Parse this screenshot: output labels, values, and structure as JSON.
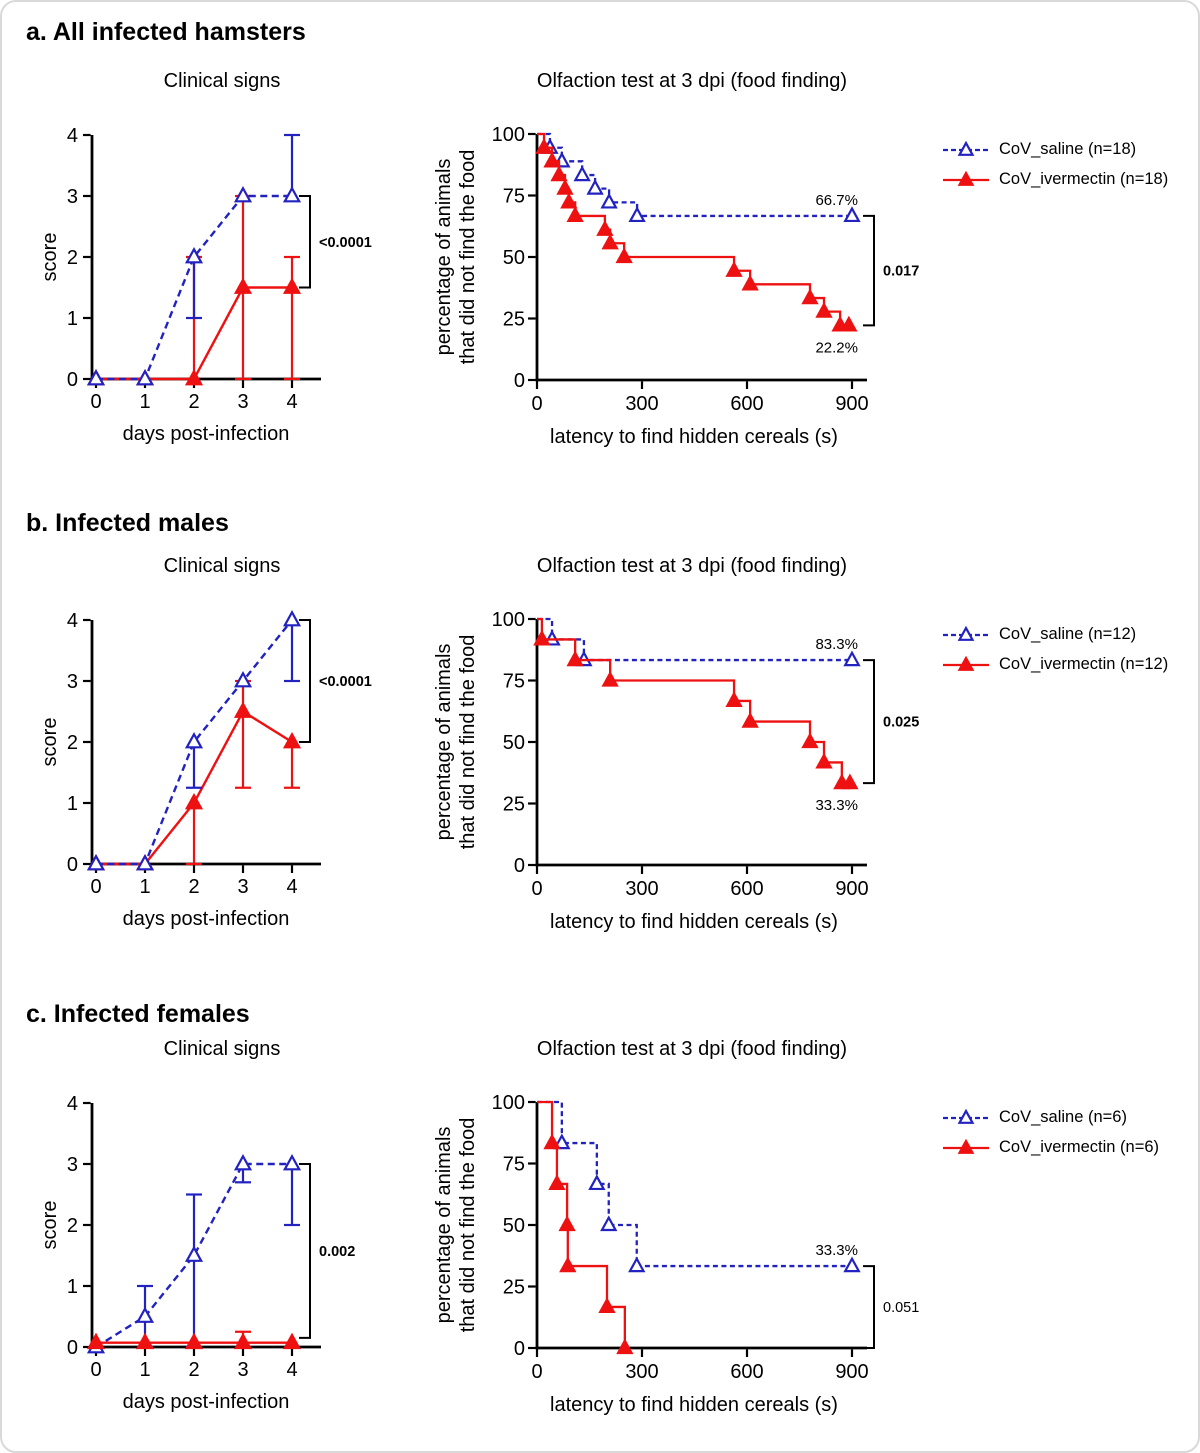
{
  "colors": {
    "saline": "#2222c0",
    "ivermectin": "#ee1111",
    "axis": "#000000",
    "muted": "#6e6e6e"
  },
  "panels": [
    {
      "id": "a",
      "title": "a. All infected hamsters",
      "legend": [
        {
          "label": "CoV_saline (n=18)",
          "series": "saline"
        },
        {
          "label": "CoV_ivermectin (n=18)",
          "series": "ivermectin"
        }
      ]
    },
    {
      "id": "b",
      "title": "b. Infected males",
      "legend": [
        {
          "label": "CoV_saline (n=12)",
          "series": "saline"
        },
        {
          "label": "CoV_ivermectin (n=12)",
          "series": "ivermectin"
        }
      ]
    },
    {
      "id": "c",
      "title": "c. Infected females",
      "legend": [
        {
          "label": "CoV_saline (n=6)",
          "series": "saline"
        },
        {
          "label": "CoV_ivermectin (n=6)",
          "series": "ivermectin"
        }
      ]
    }
  ],
  "chart_data": [
    {
      "panel": "a",
      "type": "line",
      "title": "Clinical signs",
      "xlabel": "days post-infection",
      "ylabel": "score",
      "x": [
        0,
        1,
        2,
        3,
        4
      ],
      "xticks": [
        0,
        1,
        2,
        3,
        4
      ],
      "yticks": [
        0,
        1,
        2,
        3,
        4
      ],
      "xlim": [
        0,
        4
      ],
      "ylim": [
        0,
        4
      ],
      "series": [
        {
          "name": "CoV_saline",
          "color": "saline",
          "style": "dashed-open",
          "z": 2,
          "values": [
            0,
            0,
            2,
            3,
            3
          ],
          "err_lo": [
            null,
            null,
            1,
            null,
            null
          ],
          "err_hi": [
            null,
            null,
            null,
            null,
            4
          ]
        },
        {
          "name": "CoV_ivermectin",
          "color": "ivermectin",
          "style": "solid-filled",
          "z": 1,
          "values": [
            0,
            0,
            0,
            1.5,
            1.5
          ],
          "err_lo": [
            null,
            null,
            null,
            0,
            0
          ],
          "err_hi": [
            null,
            null,
            2,
            3,
            2
          ]
        }
      ],
      "pvalue": {
        "text": "<0.0001",
        "y_top": 3,
        "y_bottom": 1.5
      }
    },
    {
      "panel": "a",
      "type": "step",
      "title": "Olfaction test at 3 dpi (food finding)",
      "xlabel": "latency to find hidden cereals (s)",
      "ylabel": [
        "percentage of animals",
        "that did not find the food"
      ],
      "xlim": [
        0,
        900
      ],
      "ylim": [
        0,
        100
      ],
      "xticks": [
        0,
        300,
        600,
        900
      ],
      "yticks": [
        0,
        25,
        50,
        75,
        100
      ],
      "series": [
        {
          "name": "CoV_saline",
          "color": "saline",
          "style": "dashed-open",
          "start": 100,
          "drops": [
            [
              37,
              94.4
            ],
            [
              71,
              88.9
            ],
            [
              129,
              83.3
            ],
            [
              166,
              77.8
            ],
            [
              206,
              72.2
            ],
            [
              286,
              66.7
            ]
          ],
          "end_x": 900,
          "end_y": 66.7,
          "end_marker": true,
          "end_label": "66.7%",
          "end_label_pos": "above"
        },
        {
          "name": "CoV_ivermectin",
          "color": "ivermectin",
          "style": "solid-filled",
          "start": 100,
          "drops": [
            [
              20,
              94.4
            ],
            [
              43,
              88.9
            ],
            [
              63,
              83.3
            ],
            [
              80,
              77.8
            ],
            [
              91,
              72.2
            ],
            [
              109,
              66.7
            ],
            [
              194,
              61.1
            ],
            [
              209,
              55.6
            ],
            [
              249,
              50
            ],
            [
              563,
              44.4
            ],
            [
              609,
              38.9
            ],
            [
              780,
              33.3
            ],
            [
              820,
              27.8
            ],
            [
              866,
              22.2
            ],
            [
              891,
              22.2
            ]
          ],
          "end_x": 900,
          "end_y": 22.2,
          "end_marker": false,
          "end_label": "22.2%",
          "end_label_pos": "below"
        }
      ],
      "pvalue": {
        "text": "0.017",
        "y_top": 66.7,
        "y_bottom": 22.2
      }
    },
    {
      "panel": "b",
      "type": "line",
      "title": "Clinical signs",
      "xlabel": "days post-infection",
      "ylabel": "score",
      "x": [
        0,
        1,
        2,
        3,
        4
      ],
      "xticks": [
        0,
        1,
        2,
        3,
        4
      ],
      "yticks": [
        0,
        1,
        2,
        3,
        4
      ],
      "xlim": [
        0,
        4
      ],
      "ylim": [
        0,
        4
      ],
      "series": [
        {
          "name": "CoV_saline",
          "color": "saline",
          "style": "dashed-open",
          "z": 2,
          "values": [
            0,
            0,
            2,
            3,
            4
          ],
          "err_lo": [
            null,
            null,
            1.25,
            null,
            3
          ],
          "err_hi": [
            null,
            null,
            null,
            null,
            null
          ]
        },
        {
          "name": "CoV_ivermectin",
          "color": "ivermectin",
          "style": "solid-filled",
          "z": 1,
          "values": [
            0,
            0,
            1,
            2.5,
            2
          ],
          "err_lo": [
            null,
            null,
            0,
            1.25,
            1.25
          ],
          "err_hi": [
            null,
            null,
            null,
            3,
            null
          ]
        }
      ],
      "pvalue": {
        "text": "<0.0001",
        "y_top": 4,
        "y_bottom": 2
      }
    },
    {
      "panel": "b",
      "type": "step",
      "title": "Olfaction test at 3 dpi (food finding)",
      "xlabel": "latency to find hidden cereals (s)",
      "ylabel": [
        "percentage of animals",
        "that did not find the food"
      ],
      "xlim": [
        0,
        900
      ],
      "ylim": [
        0,
        100
      ],
      "xticks": [
        0,
        300,
        600,
        900
      ],
      "yticks": [
        0,
        25,
        50,
        75,
        100
      ],
      "series": [
        {
          "name": "CoV_saline",
          "color": "saline",
          "style": "dashed-open",
          "start": 100,
          "drops": [
            [
              43,
              91.7
            ],
            [
              134,
              83.3
            ]
          ],
          "end_x": 900,
          "end_y": 83.3,
          "end_marker": true,
          "end_label": "83.3%",
          "end_label_pos": "above"
        },
        {
          "name": "CoV_ivermectin",
          "color": "ivermectin",
          "style": "solid-filled",
          "start": 100,
          "drops": [
            [
              14,
              91.7
            ],
            [
              109,
              83.3
            ],
            [
              209,
              75
            ],
            [
              563,
              66.7
            ],
            [
              609,
              58.3
            ],
            [
              780,
              50
            ],
            [
              820,
              41.7
            ],
            [
              871,
              33.3
            ],
            [
              894,
              33.3
            ]
          ],
          "end_x": 900,
          "end_y": 33.3,
          "end_marker": false,
          "end_label": "33.3%",
          "end_label_pos": "below"
        }
      ],
      "pvalue": {
        "text": "0.025",
        "y_top": 83.3,
        "y_bottom": 33.3
      }
    },
    {
      "panel": "c",
      "type": "line",
      "title": "Clinical signs",
      "xlabel": "days post-infection",
      "ylabel": "score",
      "x": [
        0,
        1,
        2,
        3,
        4
      ],
      "xticks": [
        0,
        1,
        2,
        3,
        4
      ],
      "yticks": [
        0,
        1,
        2,
        3,
        4
      ],
      "xlim": [
        0,
        4
      ],
      "ylim": [
        0,
        4
      ],
      "series": [
        {
          "name": "CoV_saline",
          "color": "saline",
          "style": "dashed-open",
          "z": 1,
          "values": [
            0,
            0.5,
            1.5,
            3,
            3
          ],
          "err_lo": [
            null,
            0,
            0,
            2.7,
            2
          ],
          "err_hi": [
            null,
            1,
            2.5,
            null,
            null
          ]
        },
        {
          "name": "CoV_ivermectin",
          "color": "ivermectin",
          "style": "solid-filled",
          "z": 2,
          "values": [
            0.07,
            0.07,
            0.07,
            0.07,
            0.07
          ],
          "err_lo": [
            null,
            null,
            null,
            null,
            null
          ],
          "err_hi": [
            null,
            null,
            null,
            0.25,
            null
          ]
        }
      ],
      "pvalue": {
        "text": "0.002",
        "y_top": 3,
        "y_bottom": 0.15
      }
    },
    {
      "panel": "c",
      "type": "step",
      "title": "Olfaction test at 3 dpi (food finding)",
      "xlabel": "latency to find hidden cereals (s)",
      "ylabel": [
        "percentage of animals",
        "that did not find the food"
      ],
      "xlim": [
        0,
        900
      ],
      "ylim": [
        0,
        100
      ],
      "xticks": [
        0,
        300,
        600,
        900
      ],
      "yticks": [
        0,
        25,
        50,
        75,
        100
      ],
      "series": [
        {
          "name": "CoV_saline",
          "color": "saline",
          "style": "dashed-open",
          "start": 100,
          "drops": [
            [
              71,
              83.3
            ],
            [
              171,
              66.7
            ],
            [
              205,
              50
            ],
            [
              285,
              33.3
            ]
          ],
          "end_x": 900,
          "end_y": 33.3,
          "end_marker": true,
          "end_label": "33.3%",
          "end_label_pos": "above"
        },
        {
          "name": "CoV_ivermectin",
          "color": "ivermectin",
          "style": "solid-filled",
          "start": 100,
          "drops": [
            [
              43,
              83.3
            ],
            [
              57,
              66.7
            ],
            [
              86,
              50
            ],
            [
              88,
              33.3
            ],
            [
              200,
              16.7
            ],
            [
              251,
              0
            ]
          ],
          "end_x": 251,
          "end_y": 0,
          "end_marker": false,
          "end_label": null,
          "end_label_pos": null
        }
      ],
      "pvalue": {
        "text": "0.051",
        "y_top": 33.3,
        "y_bottom": 0,
        "muted": true
      }
    }
  ]
}
